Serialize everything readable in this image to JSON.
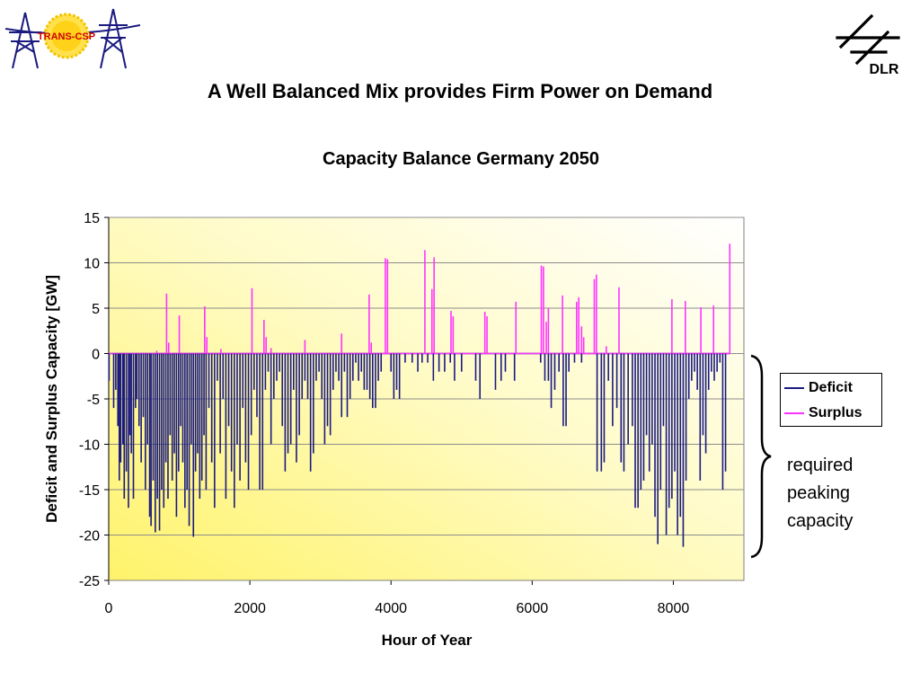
{
  "header": {
    "left_logo_text": "TRANS-CSP",
    "right_logo_text": "DLR",
    "title": "A Well Balanced Mix provides Firm Power on Demand"
  },
  "chart_data": {
    "type": "line",
    "title": "Capacity Balance Germany 2050",
    "xlabel": "Hour of Year",
    "ylabel": "Deficit and Surplus Capacity [GW]",
    "xlim": [
      0,
      9000
    ],
    "ylim": [
      -25,
      15
    ],
    "xticks": [
      0,
      2000,
      4000,
      6000,
      8000
    ],
    "yticks": [
      15,
      10,
      5,
      0,
      -5,
      -10,
      -15,
      -20,
      -25
    ],
    "grid": "horizontal",
    "background": "yellow gradient",
    "legend_position": "right",
    "series": [
      {
        "name": "Deficit",
        "color": "#1a1a80",
        "values": [
          [
            5,
            -3
          ],
          [
            70,
            -6
          ],
          [
            100,
            -4
          ],
          [
            130,
            -8
          ],
          [
            150,
            -14
          ],
          [
            170,
            -12
          ],
          [
            200,
            -10
          ],
          [
            220,
            -16
          ],
          [
            250,
            -13
          ],
          [
            280,
            -17
          ],
          [
            300,
            -9
          ],
          [
            320,
            -11
          ],
          [
            350,
            -16
          ],
          [
            380,
            -6
          ],
          [
            400,
            -5
          ],
          [
            430,
            -8
          ],
          [
            460,
            -12
          ],
          [
            490,
            -7
          ],
          [
            520,
            -15
          ],
          [
            550,
            -10
          ],
          [
            580,
            -18
          ],
          [
            600,
            -19
          ],
          [
            630,
            -14
          ],
          [
            660,
            -19.7
          ],
          [
            690,
            -16
          ],
          [
            720,
            -19.5
          ],
          [
            750,
            -15
          ],
          [
            780,
            -17
          ],
          [
            810,
            -12
          ],
          [
            840,
            -16
          ],
          [
            870,
            -9
          ],
          [
            900,
            -14
          ],
          [
            930,
            -11
          ],
          [
            960,
            -18
          ],
          [
            990,
            -13
          ],
          [
            1020,
            -8
          ],
          [
            1050,
            -12
          ],
          [
            1080,
            -17
          ],
          [
            1110,
            -15
          ],
          [
            1140,
            -19
          ],
          [
            1170,
            -10
          ],
          [
            1200,
            -20.2
          ],
          [
            1230,
            -13
          ],
          [
            1260,
            -11
          ],
          [
            1290,
            -16
          ],
          [
            1320,
            -14
          ],
          [
            1350,
            -9
          ],
          [
            1380,
            -15
          ],
          [
            1420,
            -6
          ],
          [
            1460,
            -12
          ],
          [
            1500,
            -17
          ],
          [
            1540,
            -3
          ],
          [
            1580,
            -11
          ],
          [
            1620,
            -5
          ],
          [
            1660,
            -16
          ],
          [
            1700,
            -8
          ],
          [
            1740,
            -13
          ],
          [
            1780,
            -17
          ],
          [
            1820,
            -10
          ],
          [
            1860,
            -14
          ],
          [
            1900,
            -6
          ],
          [
            1940,
            -12
          ],
          [
            1980,
            -15
          ],
          [
            2020,
            -9
          ],
          [
            2060,
            -4
          ],
          [
            2100,
            -7
          ],
          [
            2140,
            -15
          ],
          [
            2180,
            -15
          ],
          [
            2220,
            -4
          ],
          [
            2260,
            -2
          ],
          [
            2300,
            -10
          ],
          [
            2340,
            -5
          ],
          [
            2380,
            -3
          ],
          [
            2420,
            -2
          ],
          [
            2460,
            -8
          ],
          [
            2500,
            -13
          ],
          [
            2540,
            -11
          ],
          [
            2580,
            -10
          ],
          [
            2620,
            -4
          ],
          [
            2660,
            -12
          ],
          [
            2700,
            -9
          ],
          [
            2740,
            -5
          ],
          [
            2780,
            -3
          ],
          [
            2820,
            -5
          ],
          [
            2860,
            -13
          ],
          [
            2900,
            -11
          ],
          [
            2940,
            -3
          ],
          [
            2980,
            -2
          ],
          [
            3020,
            -5
          ],
          [
            3060,
            -10
          ],
          [
            3100,
            -8
          ],
          [
            3140,
            -9
          ],
          [
            3180,
            -4
          ],
          [
            3220,
            -2
          ],
          [
            3260,
            -3
          ],
          [
            3300,
            -7
          ],
          [
            3340,
            -2
          ],
          [
            3380,
            -7
          ],
          [
            3420,
            -5
          ],
          [
            3460,
            -3
          ],
          [
            3500,
            -1
          ],
          [
            3540,
            -3
          ],
          [
            3580,
            -2
          ],
          [
            3620,
            -4
          ],
          [
            3660,
            -4
          ],
          [
            3700,
            -5
          ],
          [
            3740,
            -6
          ],
          [
            3780,
            -6
          ],
          [
            3820,
            -3
          ],
          [
            3860,
            -2
          ],
          [
            4000,
            -2
          ],
          [
            4040,
            -5
          ],
          [
            4080,
            -4
          ],
          [
            4120,
            -5
          ],
          [
            4200,
            -1
          ],
          [
            4300,
            -1
          ],
          [
            4380,
            -2
          ],
          [
            4440,
            -1
          ],
          [
            4520,
            -1
          ],
          [
            4600,
            -3
          ],
          [
            4680,
            -2
          ],
          [
            4760,
            -2
          ],
          [
            4840,
            -1
          ],
          [
            4900,
            -3
          ],
          [
            5000,
            -2
          ],
          [
            5200,
            -3
          ],
          [
            5260,
            -5
          ],
          [
            5480,
            -4
          ],
          [
            5560,
            -3
          ],
          [
            5620,
            -2
          ],
          [
            5750,
            -3
          ],
          [
            6120,
            -1
          ],
          [
            6180,
            -3
          ],
          [
            6230,
            -3
          ],
          [
            6270,
            -6
          ],
          [
            6320,
            -4
          ],
          [
            6380,
            -2
          ],
          [
            6440,
            -8
          ],
          [
            6480,
            -8
          ],
          [
            6520,
            -2
          ],
          [
            6600,
            -1
          ],
          [
            6700,
            -1
          ],
          [
            6920,
            -13
          ],
          [
            6980,
            -13
          ],
          [
            7020,
            -12
          ],
          [
            7080,
            -3
          ],
          [
            7140,
            -8
          ],
          [
            7200,
            -6
          ],
          [
            7260,
            -12
          ],
          [
            7300,
            -13
          ],
          [
            7360,
            -10
          ],
          [
            7420,
            -8
          ],
          [
            7460,
            -17
          ],
          [
            7500,
            -17
          ],
          [
            7540,
            -15
          ],
          [
            7580,
            -14
          ],
          [
            7620,
            -9
          ],
          [
            7660,
            -13
          ],
          [
            7700,
            -10
          ],
          [
            7740,
            -18
          ],
          [
            7780,
            -21
          ],
          [
            7820,
            -15
          ],
          [
            7860,
            -8
          ],
          [
            7900,
            -20
          ],
          [
            7940,
            -17
          ],
          [
            7980,
            -16
          ],
          [
            8020,
            -13
          ],
          [
            8060,
            -20
          ],
          [
            8100,
            -18
          ],
          [
            8140,
            -21.3
          ],
          [
            8180,
            -14
          ],
          [
            8220,
            -5
          ],
          [
            8260,
            -3
          ],
          [
            8300,
            -2
          ],
          [
            8340,
            -4
          ],
          [
            8380,
            -14
          ],
          [
            8420,
            -9
          ],
          [
            8460,
            -11
          ],
          [
            8500,
            -4
          ],
          [
            8540,
            -2
          ],
          [
            8580,
            -3
          ],
          [
            8620,
            -2
          ],
          [
            8660,
            -1
          ],
          [
            8700,
            -15
          ],
          [
            8740,
            -13
          ]
        ]
      },
      {
        "name": "Surplus",
        "color": "#ff33ff",
        "values": [
          [
            680,
            0.3
          ],
          [
            820,
            6.6
          ],
          [
            850,
            1.2
          ],
          [
            1000,
            4.2
          ],
          [
            1360,
            5.2
          ],
          [
            1390,
            1.8
          ],
          [
            1590,
            0.5
          ],
          [
            2030,
            7.2
          ],
          [
            2200,
            3.7
          ],
          [
            2230,
            1.8
          ],
          [
            2300,
            0.6
          ],
          [
            2780,
            1.5
          ],
          [
            3300,
            2.2
          ],
          [
            3690,
            6.5
          ],
          [
            3720,
            1.2
          ],
          [
            3920,
            10.5
          ],
          [
            3950,
            10.4
          ],
          [
            4480,
            11.4
          ],
          [
            4580,
            7.1
          ],
          [
            4610,
            10.6
          ],
          [
            4850,
            4.7
          ],
          [
            4880,
            4.1
          ],
          [
            5330,
            4.6
          ],
          [
            5360,
            4.1
          ],
          [
            5770,
            5.7
          ],
          [
            6130,
            9.7
          ],
          [
            6160,
            9.6
          ],
          [
            6200,
            3.5
          ],
          [
            6230,
            5.0
          ],
          [
            6430,
            6.4
          ],
          [
            6630,
            5.7
          ],
          [
            6660,
            6.2
          ],
          [
            6700,
            3.0
          ],
          [
            6730,
            1.8
          ],
          [
            6880,
            8.2
          ],
          [
            6910,
            8.7
          ],
          [
            7050,
            0.8
          ],
          [
            7230,
            7.3
          ],
          [
            7980,
            6.0
          ],
          [
            8170,
            5.8
          ],
          [
            8390,
            5.1
          ],
          [
            8570,
            5.3
          ],
          [
            8800,
            12.1
          ]
        ]
      }
    ],
    "annotation": [
      "required",
      "peaking",
      "capacity"
    ]
  }
}
